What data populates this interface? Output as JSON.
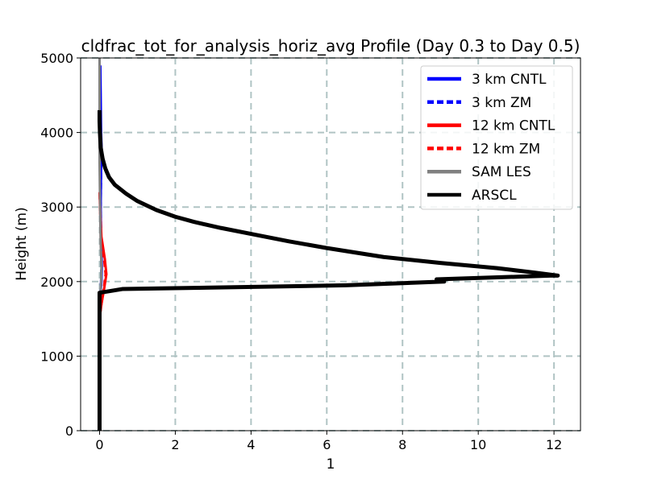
{
  "chart_data": {
    "type": "line",
    "title": "cldfrac_tot_for_analysis_horiz_avg Profile (Day 0.3 to Day 0.5)",
    "xlabel": "1",
    "ylabel": "Height (m)",
    "xlim": [
      -0.5,
      12.7
    ],
    "ylim": [
      0,
      5000
    ],
    "xticks": [
      0,
      2,
      4,
      6,
      8,
      10,
      12
    ],
    "yticks": [
      0,
      1000,
      2000,
      3000,
      4000,
      5000
    ],
    "grid": true,
    "legend_position": "upper-right",
    "series": [
      {
        "name": "3 km CNTL",
        "color": "#0000ff",
        "dash": "solid",
        "points": [
          [
            0.0,
            0
          ],
          [
            0.0,
            1500
          ],
          [
            0.02,
            1800
          ],
          [
            0.05,
            2000
          ],
          [
            0.06,
            2200
          ],
          [
            0.04,
            2600
          ],
          [
            0.03,
            3000
          ],
          [
            0.04,
            3500
          ],
          [
            0.06,
            3700
          ],
          [
            0.04,
            4000
          ],
          [
            0.03,
            4500
          ],
          [
            0.02,
            4900
          ]
        ]
      },
      {
        "name": "3 km ZM",
        "color": "#0000ff",
        "dash": "dashed",
        "points": [
          [
            0.0,
            0
          ],
          [
            0.0,
            1500
          ],
          [
            0.02,
            1800
          ],
          [
            0.04,
            2000
          ],
          [
            0.05,
            2200
          ],
          [
            0.04,
            2600
          ],
          [
            0.03,
            3000
          ],
          [
            0.04,
            3500
          ],
          [
            0.05,
            3700
          ],
          [
            0.03,
            4000
          ],
          [
            0.02,
            4500
          ],
          [
            0.01,
            4900
          ]
        ]
      },
      {
        "name": "12 km CNTL",
        "color": "#ff0000",
        "dash": "solid",
        "points": [
          [
            0.0,
            0
          ],
          [
            0.0,
            1500
          ],
          [
            0.05,
            1700
          ],
          [
            0.12,
            1900
          ],
          [
            0.18,
            2100
          ],
          [
            0.14,
            2300
          ],
          [
            0.05,
            2600
          ],
          [
            0.02,
            2900
          ],
          [
            0.0,
            3200
          ]
        ]
      },
      {
        "name": "12 km ZM",
        "color": "#ff0000",
        "dash": "dashed",
        "points": [
          [
            0.0,
            0
          ],
          [
            0.0,
            1500
          ],
          [
            0.05,
            1700
          ],
          [
            0.11,
            1900
          ],
          [
            0.16,
            2100
          ],
          [
            0.12,
            2300
          ],
          [
            0.04,
            2600
          ],
          [
            0.02,
            2900
          ],
          [
            0.0,
            3200
          ]
        ]
      },
      {
        "name": "SAM LES",
        "color": "#808080",
        "dash": "solid",
        "points": [
          [
            0.0,
            1500
          ],
          [
            0.02,
            1800
          ],
          [
            0.04,
            2000
          ],
          [
            0.05,
            2200
          ],
          [
            0.03,
            2500
          ],
          [
            0.02,
            2800
          ],
          [
            0.01,
            3200
          ],
          [
            0.0,
            3600
          ],
          [
            0.0,
            4200
          ],
          [
            0.0,
            5000
          ]
        ]
      },
      {
        "name": "ARSCL",
        "color": "#000000",
        "dash": "solid",
        "points": [
          [
            0,
            0
          ],
          [
            0,
            1850
          ],
          [
            0.6,
            1900
          ],
          [
            6.5,
            1950
          ],
          [
            9.1,
            2000
          ],
          [
            8.9,
            2030
          ],
          [
            11.9,
            2080
          ],
          [
            12.1,
            2080
          ],
          [
            11.5,
            2120
          ],
          [
            10.5,
            2180
          ],
          [
            9.0,
            2250
          ],
          [
            7.5,
            2330
          ],
          [
            6.0,
            2450
          ],
          [
            5.0,
            2540
          ],
          [
            4.0,
            2640
          ],
          [
            3.2,
            2720
          ],
          [
            2.5,
            2800
          ],
          [
            2.0,
            2870
          ],
          [
            1.5,
            2960
          ],
          [
            1.0,
            3080
          ],
          [
            0.7,
            3180
          ],
          [
            0.4,
            3300
          ],
          [
            0.25,
            3400
          ],
          [
            0.15,
            3520
          ],
          [
            0.08,
            3650
          ],
          [
            0.03,
            3800
          ],
          [
            0.01,
            4000
          ],
          [
            0.0,
            4150
          ],
          [
            0.0,
            4300
          ]
        ]
      }
    ]
  }
}
